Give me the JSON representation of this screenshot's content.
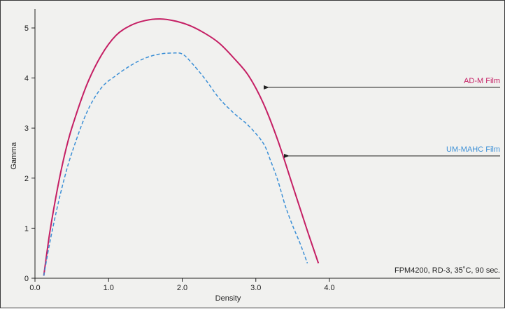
{
  "chart_data": {
    "type": "line",
    "title": "",
    "xlabel": "Density",
    "ylabel": "Gamma",
    "xlim": [
      0,
      4.5
    ],
    "ylim": [
      0,
      5.3
    ],
    "xticks": [
      0,
      1,
      2,
      3,
      4
    ],
    "xtick_labels": [
      "0.0",
      "1.0",
      "2.0",
      "3.0",
      "4.0"
    ],
    "yticks": [
      0,
      1,
      2,
      3,
      4,
      5
    ],
    "ytick_labels": [
      "0",
      "1",
      "2",
      "3",
      "4",
      "5"
    ],
    "grid": false,
    "annotation": "FPM4200, RD-3, 35˚C, 90 sec.",
    "series": [
      {
        "name": "AD-M Film",
        "color": "#c51f64",
        "style": "solid",
        "label_color": "#c51f64",
        "x": [
          0.12,
          0.2,
          0.3,
          0.4,
          0.5,
          0.7,
          0.9,
          1.1,
          1.3,
          1.5,
          1.7,
          1.9,
          2.1,
          2.3,
          2.5,
          2.7,
          2.9,
          3.1,
          3.3,
          3.5,
          3.7,
          3.85
        ],
        "y": [
          0.05,
          0.9,
          1.75,
          2.45,
          3.0,
          3.85,
          4.45,
          4.85,
          5.05,
          5.15,
          5.18,
          5.14,
          5.05,
          4.9,
          4.7,
          4.4,
          4.05,
          3.5,
          2.75,
          1.85,
          0.95,
          0.3
        ]
      },
      {
        "name": "UM-MAHC Film",
        "color": "#3b8fd6",
        "style": "dashed",
        "label_color": "#3b8fd6",
        "x": [
          0.12,
          0.2,
          0.3,
          0.4,
          0.5,
          0.7,
          0.9,
          1.1,
          1.3,
          1.5,
          1.7,
          1.9,
          2.0,
          2.1,
          2.3,
          2.5,
          2.7,
          2.9,
          3.1,
          3.2,
          3.3,
          3.4,
          3.5,
          3.6,
          3.7
        ],
        "y": [
          0.05,
          0.7,
          1.4,
          2.0,
          2.5,
          3.3,
          3.8,
          4.05,
          4.25,
          4.4,
          4.48,
          4.5,
          4.48,
          4.35,
          4.0,
          3.6,
          3.3,
          3.05,
          2.7,
          2.35,
          1.95,
          1.45,
          1.05,
          0.7,
          0.3
        ]
      }
    ]
  }
}
